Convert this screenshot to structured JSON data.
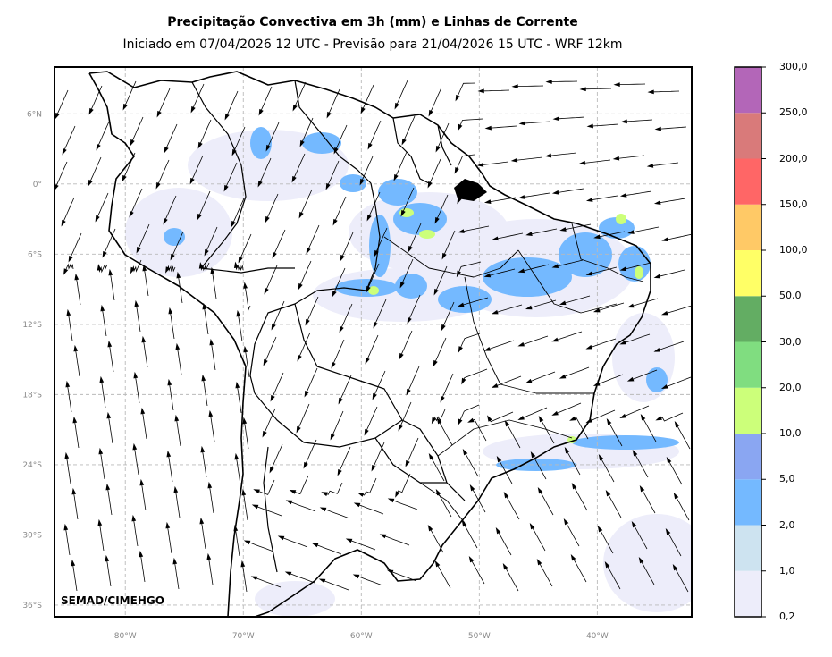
{
  "header": {
    "title": "Precipitação Convectiva em 3h (mm) e Linhas de Corrente",
    "subtitle": "Iniciado em 07/04/2026 12 UTC - Previsão para 21/04/2026 15 UTC - WRF 12km"
  },
  "map": {
    "lon_range": [
      -86,
      -32
    ],
    "lat_range": [
      -37,
      10
    ],
    "lon_ticks": [
      {
        "value": -80,
        "label": "80°W"
      },
      {
        "value": -70,
        "label": "70°W"
      },
      {
        "value": -60,
        "label": "60°W"
      },
      {
        "value": -50,
        "label": "50°W"
      },
      {
        "value": -40,
        "label": "40°W"
      }
    ],
    "lat_ticks": [
      {
        "value": 6,
        "label": "6°N"
      },
      {
        "value": 0,
        "label": "0°"
      },
      {
        "value": -6,
        "label": "6°S"
      },
      {
        "value": -12,
        "label": "12°S"
      },
      {
        "value": -18,
        "label": "18°S"
      },
      {
        "value": -24,
        "label": "24°S"
      },
      {
        "value": -30,
        "label": "30°S"
      },
      {
        "value": -36,
        "label": "36°S"
      }
    ],
    "grid": "dashed",
    "credit": "SEMAD/CIMEHGO"
  },
  "colorbar": {
    "levels": [
      "0,2",
      "1,0",
      "2,0",
      "5,0",
      "10,0",
      "20,0",
      "30,0",
      "50,0",
      "100,0",
      "150,0",
      "200,0",
      "250,0",
      "300,0"
    ],
    "colors": [
      "#ededfa",
      "#cde3f0",
      "#74b9ff",
      "#8aa6f2",
      "#ccff7a",
      "#80dd80",
      "#63ad63",
      "#ffff66",
      "#ffc966",
      "#ff6666",
      "#d97a7a",
      "#b366b8"
    ]
  }
}
